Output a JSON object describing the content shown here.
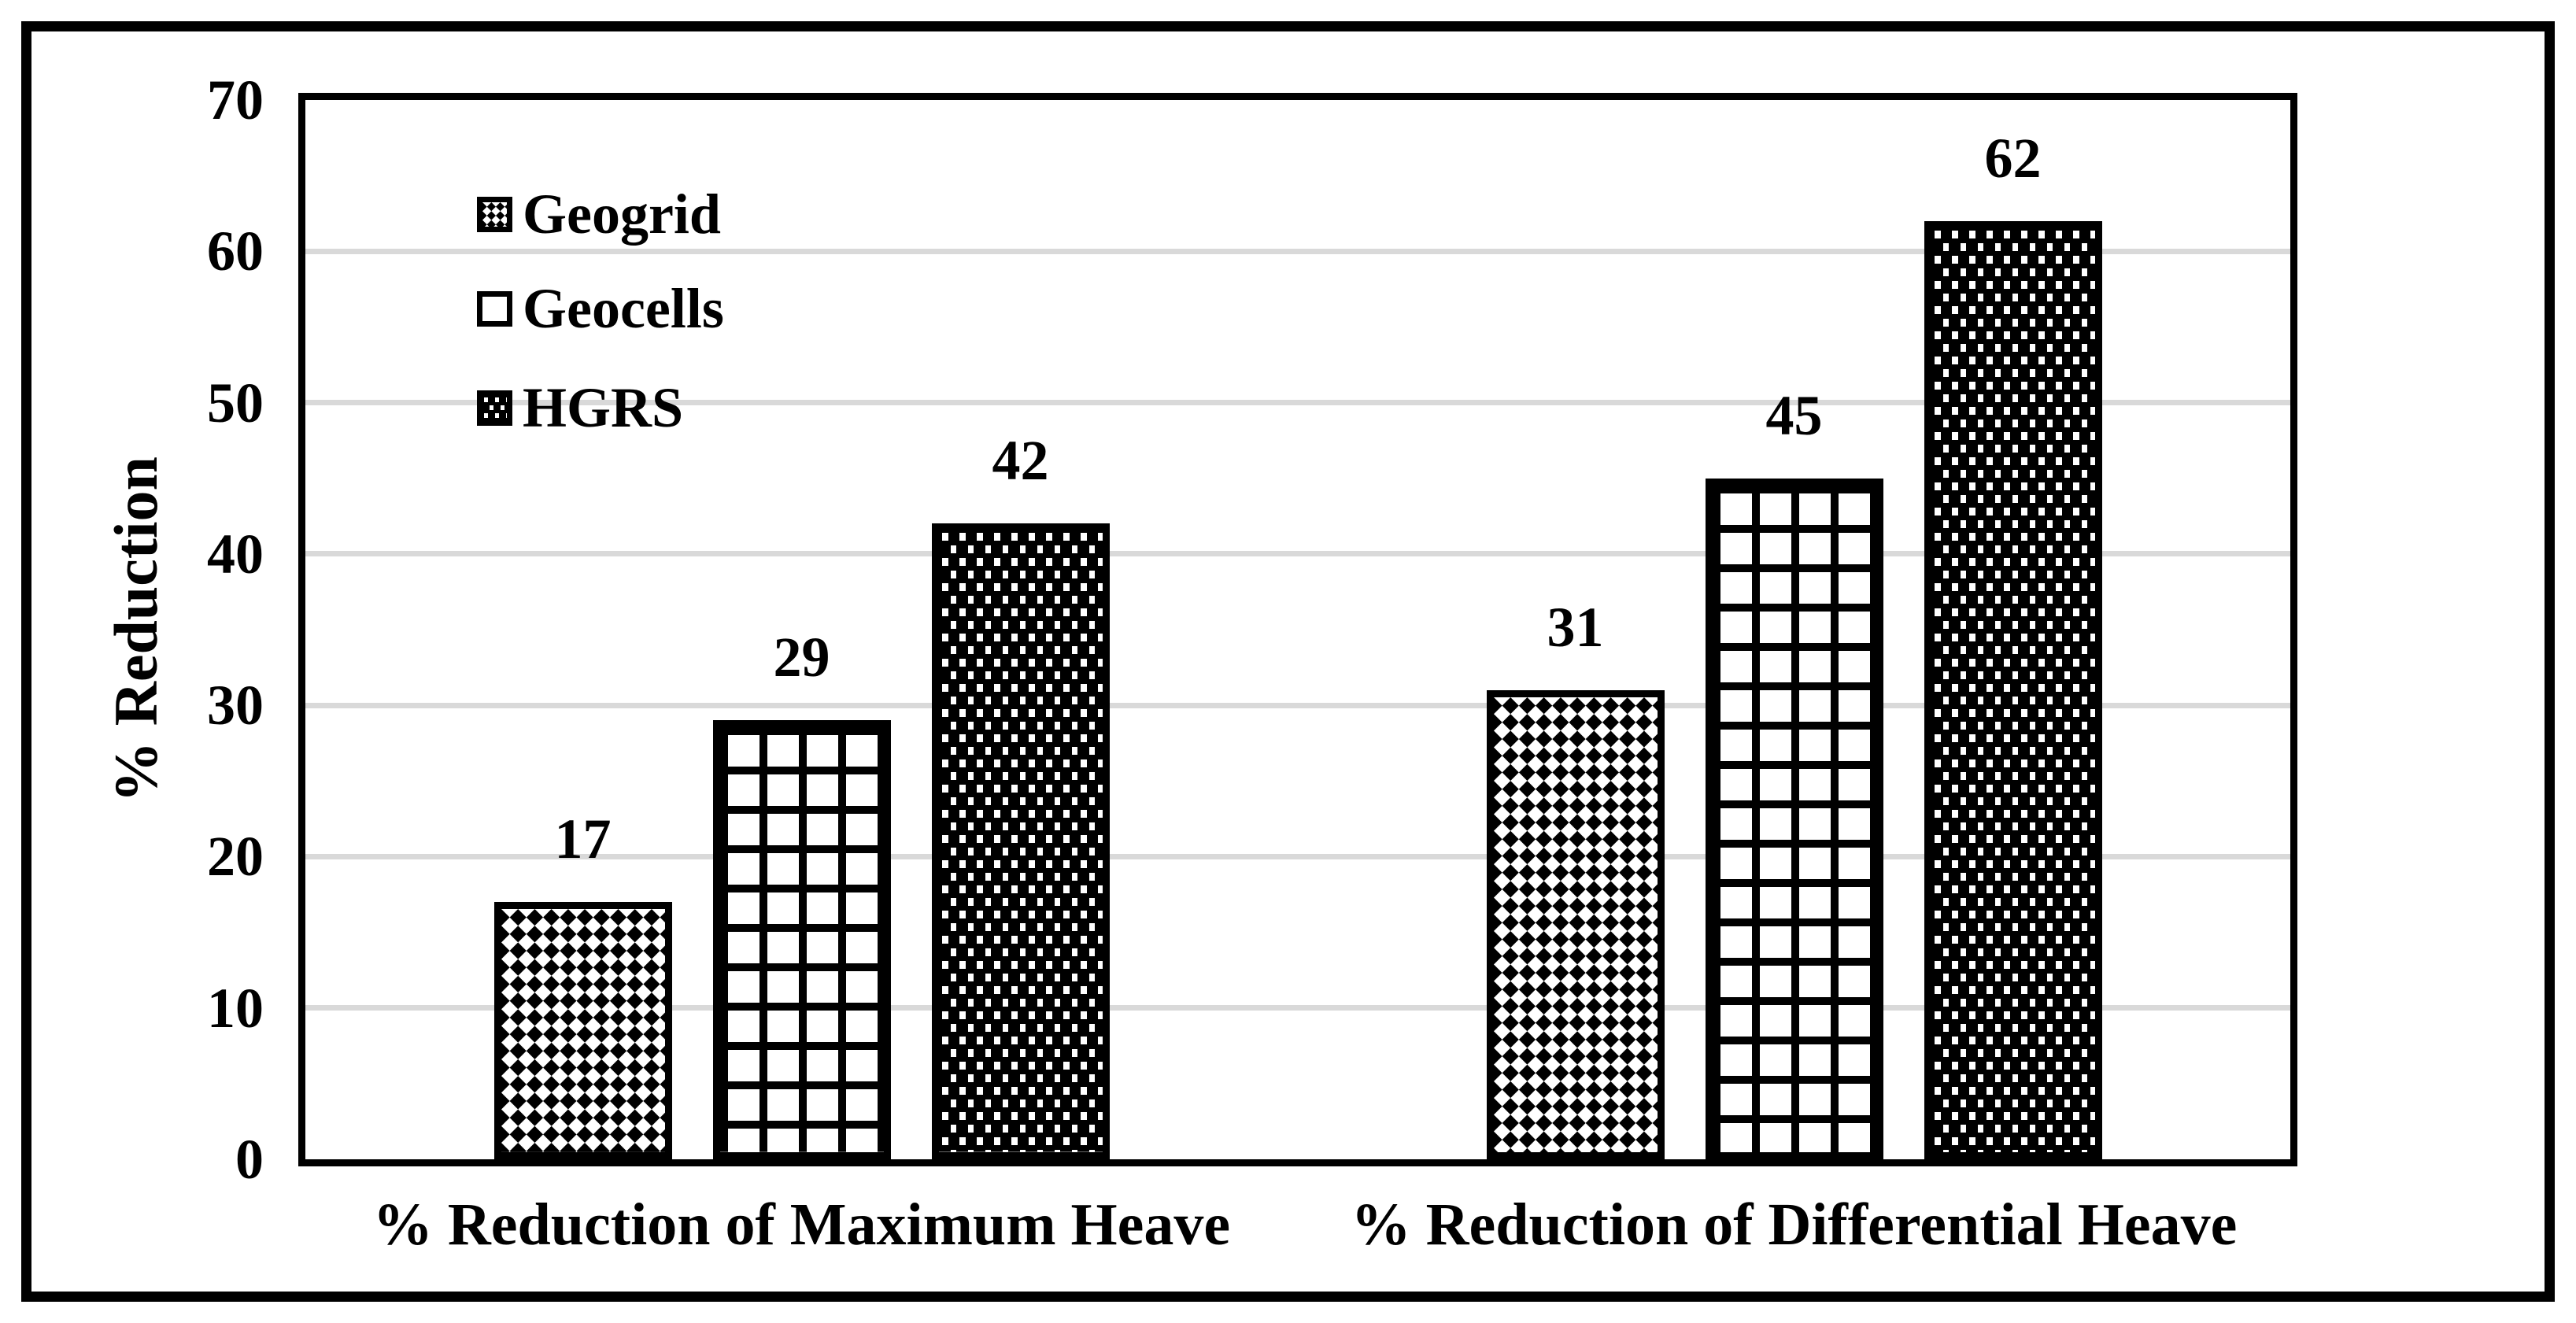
{
  "chart_data": {
    "type": "bar",
    "title": "",
    "categories": [
      "% Reduction of Maximum Heave",
      "% Reduction of Differential Heave"
    ],
    "series": [
      {
        "name": "Geogrid",
        "pattern": "diagonal-checker-icon",
        "values": [
          17,
          31
        ]
      },
      {
        "name": "Geocells",
        "pattern": "open-grid-icon",
        "values": [
          29,
          45
        ]
      },
      {
        "name": "HGRS",
        "pattern": "dark-dotted-icon",
        "values": [
          42,
          62
        ]
      }
    ],
    "data_labels": {
      "maximum_heave": [
        17,
        29,
        42
      ],
      "differential_heave": [
        31,
        45,
        62
      ]
    },
    "xlabel": "",
    "ylabel": "% Reduction",
    "ylim": [
      0,
      70
    ],
    "yticks": [
      0,
      10,
      20,
      30,
      40,
      50,
      60,
      70
    ],
    "grid": true,
    "legend_position": "upper-left-inside",
    "colors": {
      "foreground": "#000000",
      "background": "#ffffff",
      "gridline": "#d9d9d9"
    }
  }
}
